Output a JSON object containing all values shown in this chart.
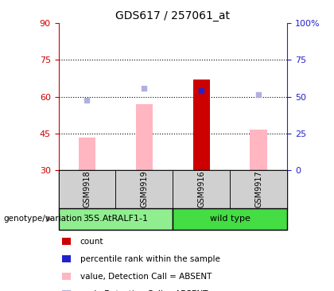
{
  "title": "GDS617 / 257061_at",
  "samples": [
    "GSM9918",
    "GSM9919",
    "GSM9916",
    "GSM9917"
  ],
  "ylim_left": [
    30,
    90
  ],
  "ylim_right": [
    0,
    100
  ],
  "yticks_left": [
    30,
    45,
    60,
    75,
    90
  ],
  "yticks_right": [
    0,
    25,
    50,
    75,
    100
  ],
  "ytick_right_labels": [
    "0",
    "25",
    "50",
    "75",
    "100%"
  ],
  "bar_values": [
    null,
    null,
    67.0,
    null
  ],
  "bar_color": "#cc0000",
  "rank_values": [
    null,
    null,
    62.5,
    null
  ],
  "rank_color": "#2222cc",
  "absent_value_values": [
    43.5,
    57.0,
    null,
    46.5
  ],
  "absent_value_color": "#ffb6c1",
  "absent_rank_values": [
    58.5,
    63.5,
    null,
    61.0
  ],
  "absent_rank_color": "#b0b0e0",
  "bar_width": 0.3,
  "left_yaxis_color": "#cc0000",
  "right_yaxis_color": "#2222cc",
  "grid_yticks": [
    45,
    60,
    75
  ],
  "genotype_label": "genotype/variation",
  "group_unique": [
    "35S.AtRALF1-1",
    "wild type"
  ],
  "group_colors": [
    "#90ee90",
    "#44dd44"
  ],
  "legend_items": [
    {
      "label": "count",
      "color": "#cc0000"
    },
    {
      "label": "percentile rank within the sample",
      "color": "#2222cc"
    },
    {
      "label": "value, Detection Call = ABSENT",
      "color": "#ffb6c1"
    },
    {
      "label": "rank, Detection Call = ABSENT",
      "color": "#b0b0e0"
    }
  ]
}
